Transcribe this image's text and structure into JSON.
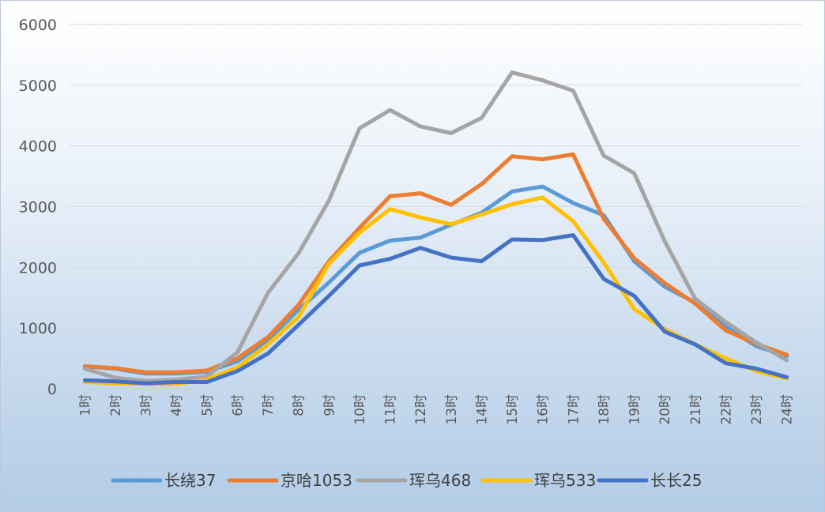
{
  "chart_data": {
    "type": "line",
    "categories": [
      "1时",
      "2时",
      "3时",
      "4时",
      "5时",
      "6时",
      "7时",
      "8时",
      "9时",
      "10时",
      "11时",
      "12时",
      "13时",
      "14时",
      "15时",
      "16时",
      "17时",
      "18时",
      "19时",
      "20时",
      "21时",
      "22时",
      "23时",
      "24时"
    ],
    "ylim": [
      0,
      6000
    ],
    "yticks": [
      0,
      1000,
      2000,
      3000,
      4000,
      5000,
      6000
    ],
    "grid": true,
    "legend_position": "bottom",
    "series": [
      {
        "name": "长绕37",
        "color": "#5b9bd5",
        "values": [
          370,
          330,
          250,
          250,
          280,
          450,
          800,
          1300,
          1750,
          2240,
          2440,
          2490,
          2700,
          2900,
          3250,
          3330,
          3060,
          2860,
          2100,
          1680,
          1420,
          1020,
          700,
          540
        ]
      },
      {
        "name": "京哈1053",
        "color": "#ed7d31",
        "values": [
          370,
          340,
          270,
          270,
          300,
          500,
          850,
          1380,
          2100,
          2650,
          3170,
          3220,
          3030,
          3370,
          3830,
          3780,
          3860,
          2800,
          2150,
          1740,
          1400,
          960,
          740,
          560
        ]
      },
      {
        "name": "珲乌468",
        "color": "#a5a5a5",
        "values": [
          330,
          180,
          130,
          150,
          200,
          600,
          1580,
          2230,
          3100,
          4290,
          4590,
          4320,
          4210,
          4460,
          5210,
          5080,
          4910,
          3840,
          3550,
          2430,
          1480,
          1100,
          760,
          470
        ]
      },
      {
        "name": "珲乌533",
        "color": "#ffc000",
        "values": [
          110,
          90,
          80,
          80,
          150,
          350,
          730,
          1180,
          2060,
          2570,
          2960,
          2820,
          2710,
          2870,
          3040,
          3150,
          2760,
          2080,
          1310,
          980,
          730,
          500,
          290,
          170
        ]
      },
      {
        "name": "长长25",
        "color": "#4472c4",
        "values": [
          140,
          120,
          90,
          110,
          110,
          290,
          580,
          1050,
          1530,
          2030,
          2140,
          2320,
          2160,
          2100,
          2460,
          2450,
          2530,
          1810,
          1530,
          940,
          730,
          420,
          330,
          190
        ]
      }
    ]
  }
}
